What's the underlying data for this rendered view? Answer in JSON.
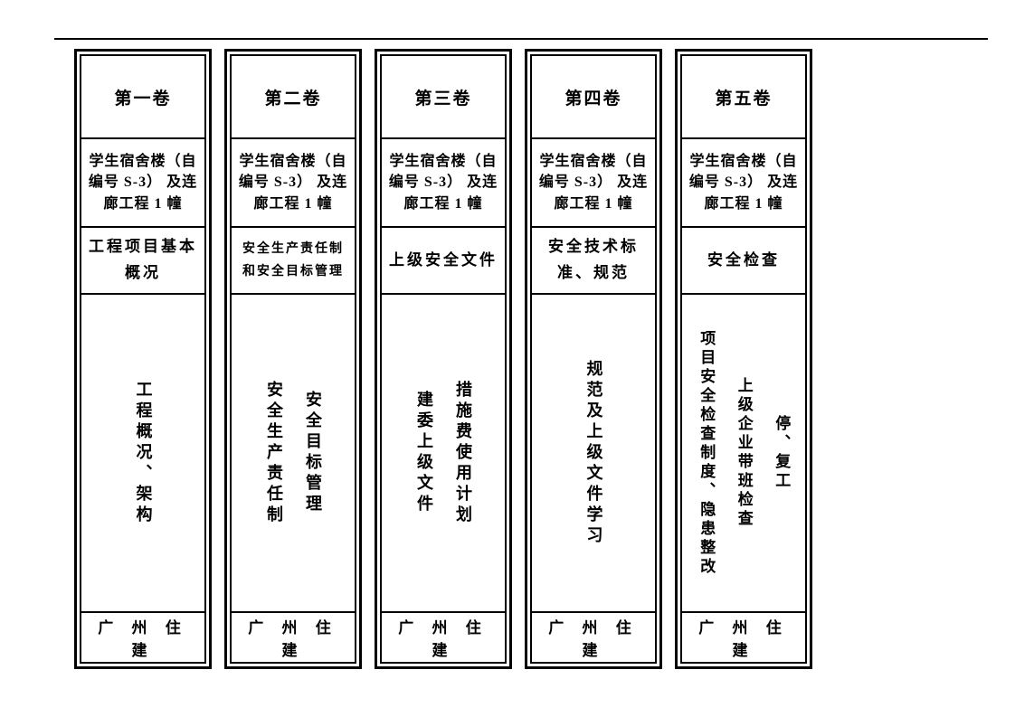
{
  "page": {
    "background_color": "#ffffff",
    "border_color": "#000000",
    "text_color": "#000000",
    "font_family": "SimSun"
  },
  "spines": [
    {
      "volume": "第一卷",
      "project": "学生宿舍楼（自编号 S-3） 及连廊工程 1 幢",
      "category": "工程项目基本概况",
      "category_small": false,
      "contents": [
        "工程概况、架构"
      ],
      "publisher": "广 州 住 建"
    },
    {
      "volume": "第二卷",
      "project": "学生宿舍楼（自编号 S-3） 及连廊工程 1 幢",
      "category": "安全生产责任制和安全目标管理",
      "category_small": true,
      "contents": [
        "安全生产责任制",
        "安全目标管理"
      ],
      "publisher": "广 州 住 建"
    },
    {
      "volume": "第三卷",
      "project": "学生宿舍楼（自编号 S-3） 及连廊工程 1 幢",
      "category": "上级安全文件",
      "category_small": false,
      "contents": [
        "建委上级文件",
        "措施费使用计划"
      ],
      "publisher": "广 州 住 建"
    },
    {
      "volume": "第四卷",
      "project": "学生宿舍楼（自编号 S-3） 及连廊工程 1 幢",
      "category": "安全技术标准、规范",
      "category_small": false,
      "contents": [
        "规范及上级文件学习"
      ],
      "publisher": "广 州 住 建"
    },
    {
      "volume": "第五卷",
      "project": "学生宿舍楼（自编号 S-3） 及连廊工程 1 幢",
      "category": "安全检查",
      "category_small": false,
      "contents": [
        "项目安全检查制度、隐患整改",
        "上级企业带班检查",
        "停、复工"
      ],
      "publisher": "广 州 住 建"
    }
  ]
}
